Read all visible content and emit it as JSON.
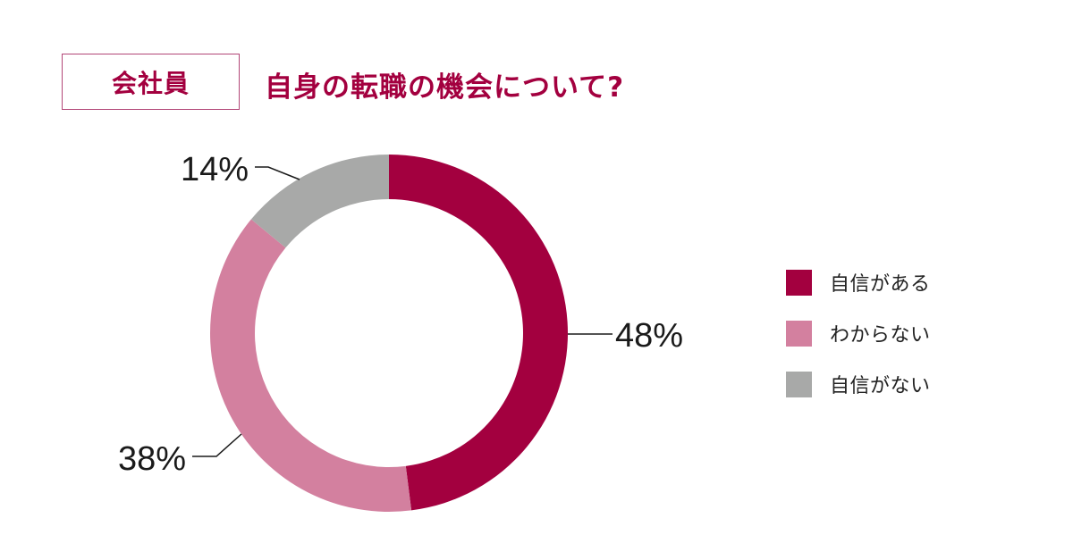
{
  "header": {
    "tag": "会社員",
    "title": "自身の転職の機会について?"
  },
  "chart_data": {
    "type": "pie",
    "subtype": "donut",
    "start_angle": "12 o'clock, clockwise",
    "series": [
      {
        "name": "自信がある",
        "value": 48,
        "label": "48%",
        "color": "#a3003f"
      },
      {
        "name": "わからない",
        "value": 38,
        "label": "38%",
        "color": "#d3809f"
      },
      {
        "name": "自信がない",
        "value": 14,
        "label": "14%",
        "color": "#a8a9a8"
      }
    ],
    "legend_position": "right"
  }
}
